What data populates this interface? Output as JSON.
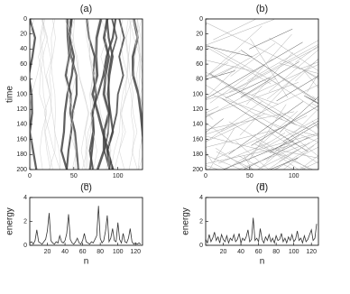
{
  "chart_data": [
    {
      "type": "image",
      "title": "(a)",
      "xlabel": "n",
      "ylabel": "time",
      "xlim": [
        0,
        128
      ],
      "xticks": [
        0,
        50,
        100
      ],
      "ylim": [
        200,
        0
      ],
      "yticks": [
        0,
        20,
        40,
        60,
        80,
        100,
        120,
        140,
        160,
        180,
        200
      ]
    },
    {
      "type": "image",
      "title": "(b)",
      "xlabel": "n",
      "xlim": [
        0,
        128
      ],
      "xticks": [
        0,
        50,
        100
      ],
      "ylim": [
        200,
        0
      ],
      "yticks": [
        0,
        20,
        40,
        60,
        80,
        100,
        120,
        140,
        160,
        180,
        200
      ]
    },
    {
      "type": "line",
      "title": "(c)",
      "xlabel": "n",
      "ylabel": "energy",
      "color": "#333333",
      "xlim": [
        0,
        128
      ],
      "xticks": [
        20,
        40,
        60,
        80,
        100,
        120
      ],
      "ylim": [
        0,
        4
      ],
      "yticks": [
        0,
        2,
        4
      ],
      "x": [
        0,
        2,
        4,
        6,
        8,
        10,
        12,
        14,
        16,
        18,
        20,
        22,
        24,
        26,
        28,
        30,
        32,
        34,
        36,
        38,
        40,
        42,
        44,
        46,
        48,
        50,
        52,
        54,
        56,
        58,
        60,
        62,
        64,
        66,
        68,
        70,
        72,
        74,
        76,
        78,
        80,
        82,
        84,
        86,
        88,
        90,
        92,
        94,
        96,
        98,
        100,
        102,
        104,
        106,
        108,
        110,
        112,
        114,
        116,
        118,
        120,
        122,
        124,
        126
      ],
      "values": [
        0.2,
        0.3,
        0.1,
        0.4,
        1.3,
        0.3,
        0.2,
        0.1,
        0.3,
        0.5,
        1.2,
        2.7,
        0.4,
        0.2,
        0.1,
        0.3,
        0.2,
        0.8,
        0.3,
        0.2,
        0.4,
        1.0,
        2.6,
        0.5,
        0.2,
        0.1,
        0.3,
        0.6,
        0.2,
        0.1,
        0.4,
        1.0,
        0.3,
        0.2,
        0.1,
        0.3,
        0.2,
        0.5,
        0.8,
        3.3,
        0.6,
        0.2,
        0.4,
        1.2,
        2.5,
        0.3,
        0.6,
        1.4,
        0.4,
        0.3,
        1.9,
        0.5,
        0.2,
        1.0,
        0.3,
        0.2,
        0.6,
        1.4,
        0.3,
        0.1,
        0.2,
        0.1,
        0.2,
        0.1
      ]
    },
    {
      "type": "line",
      "title": "(d)",
      "xlabel": "n",
      "ylabel": "energy",
      "color": "#333333",
      "xlim": [
        0,
        128
      ],
      "xticks": [
        20,
        40,
        60,
        80,
        100,
        120
      ],
      "ylim": [
        0,
        4
      ],
      "yticks": [
        0,
        2,
        4
      ],
      "x": [
        0,
        2,
        4,
        6,
        8,
        10,
        12,
        14,
        16,
        18,
        20,
        22,
        24,
        26,
        28,
        30,
        32,
        34,
        36,
        38,
        40,
        42,
        44,
        46,
        48,
        50,
        52,
        54,
        56,
        58,
        60,
        62,
        64,
        66,
        68,
        70,
        72,
        74,
        76,
        78,
        80,
        82,
        84,
        86,
        88,
        90,
        92,
        94,
        96,
        98,
        100,
        102,
        104,
        106,
        108,
        110,
        112,
        114,
        116,
        118,
        120,
        122,
        124,
        126
      ],
      "values": [
        0.5,
        0.2,
        0.9,
        0.3,
        0.6,
        1.1,
        0.4,
        0.7,
        0.2,
        0.9,
        0.5,
        0.3,
        0.8,
        0.2,
        0.6,
        0.4,
        0.9,
        0.3,
        0.5,
        1.0,
        0.2,
        0.6,
        0.4,
        0.7,
        1.3,
        0.3,
        0.5,
        2.3,
        0.4,
        0.6,
        0.3,
        1.4,
        0.5,
        0.2,
        0.7,
        0.4,
        0.9,
        0.3,
        0.6,
        0.2,
        0.8,
        0.4,
        0.5,
        1.0,
        0.3,
        0.6,
        0.2,
        0.7,
        0.4,
        0.9,
        0.3,
        0.5,
        1.2,
        0.4,
        0.6,
        0.2,
        0.8,
        0.3,
        0.5,
        0.9,
        1.3,
        0.4,
        0.6,
        1.8
      ]
    }
  ]
}
